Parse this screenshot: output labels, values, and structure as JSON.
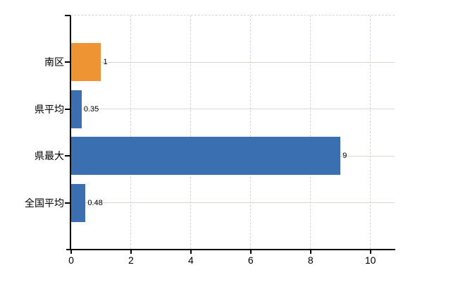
{
  "chart_data": {
    "type": "bar",
    "orientation": "horizontal",
    "categories": [
      "南区",
      "県平均",
      "県最大",
      "全国平均"
    ],
    "values": [
      1,
      0.35,
      9,
      0.48
    ],
    "value_labels": [
      "1",
      "0.35",
      "9",
      "0.48"
    ],
    "bar_colors": [
      "#EE9432",
      "#3A70B2",
      "#3A70B2",
      "#3A70B2"
    ],
    "x_ticks": [
      0,
      2,
      4,
      6,
      8,
      10
    ],
    "x_tick_labels": [
      "0",
      "2",
      "4",
      "6",
      "8",
      "10"
    ],
    "xlim": [
      0,
      10.8
    ],
    "grid": true,
    "legend": false,
    "colors": {
      "gridline": "#d5d9d2",
      "axis": "#000000",
      "text": "#000000",
      "background": "#ffffff"
    }
  }
}
